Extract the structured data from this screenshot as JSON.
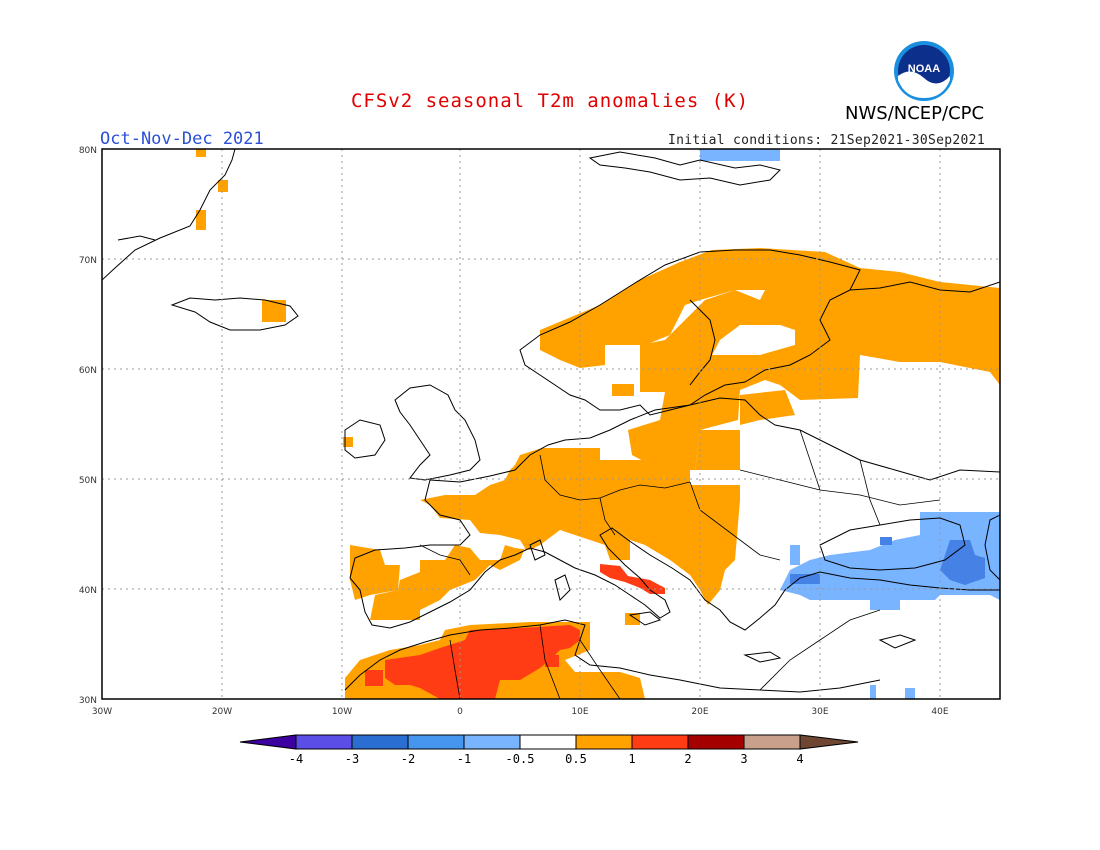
{
  "header": {
    "title": "CFSv2 seasonal T2m anomalies (K)",
    "credit": "NWS/NCEP/CPC",
    "logo_text": "NOAA",
    "season": "Oct-Nov-Dec 2021",
    "initial_conditions": "Initial conditions: 21Sep2021-30Sep2021"
  },
  "map": {
    "lat_ticks": [
      "80N",
      "70N",
      "60N",
      "50N",
      "40N",
      "30N"
    ],
    "lon_ticks": [
      "30W",
      "20W",
      "10W",
      "0",
      "10E",
      "20E",
      "30E",
      "40E"
    ],
    "colors": {
      "warm_1": "#ffa200",
      "warm_2": "#ff3c14",
      "cool_1": "#78b4ff",
      "cool_2": "#4682e6",
      "coast": "#000000",
      "grid": "#9a9a9a"
    }
  },
  "colorbar": {
    "labels": [
      "-4",
      "-3",
      "-2",
      "-1",
      "-0.5",
      "0.5",
      "1",
      "2",
      "3",
      "4"
    ],
    "colors": [
      "#3c00a0",
      "#5a4ee6",
      "#2a6ed2",
      "#4696f0",
      "#78b4ff",
      "#ffffff",
      "#ffa200",
      "#ff3c14",
      "#a50000",
      "#c8a08c",
      "#6e4632"
    ]
  }
}
